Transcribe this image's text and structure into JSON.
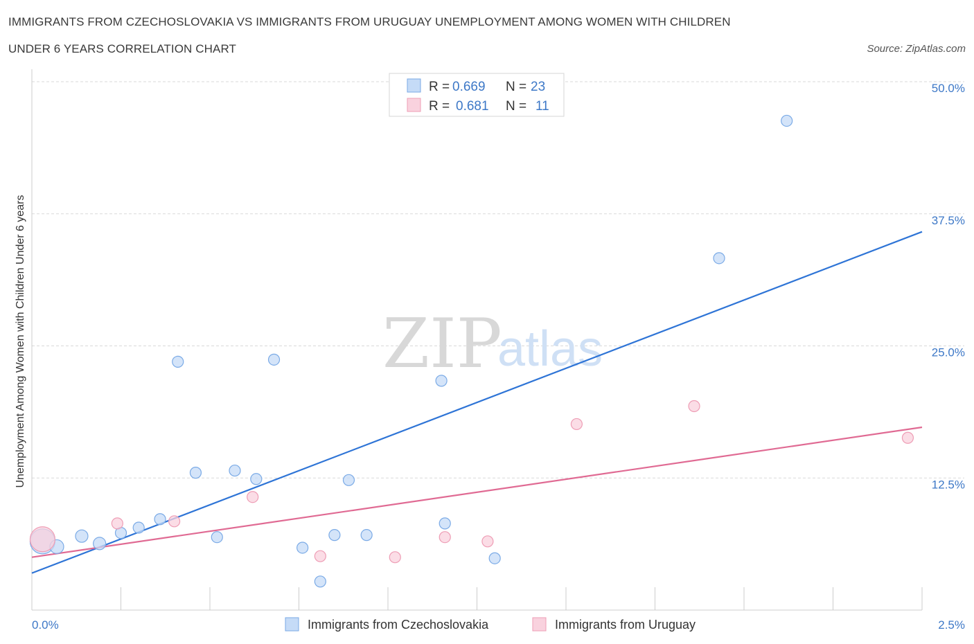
{
  "title_line1": "IMMIGRANTS FROM CZECHOSLOVAKIA VS IMMIGRANTS FROM URUGUAY UNEMPLOYMENT AMONG WOMEN WITH CHILDREN",
  "title_line2": "UNDER 6 YEARS CORRELATION CHART",
  "source": "Source: ZipAtlas.com",
  "watermark": {
    "zip": "ZIP",
    "atlas": "atlas"
  },
  "colors": {
    "blue_fill": "#c5dbf7",
    "blue_stroke": "#7aaae6",
    "blue_line": "#2e74d6",
    "pink_fill": "#f9d2de",
    "pink_stroke": "#ee9db5",
    "pink_line": "#e06a93",
    "grid": "#d9d9d9",
    "axis_text": "#3d78c7"
  },
  "chart_data": {
    "type": "scatter",
    "title": "IMMIGRANTS FROM CZECHOSLOVAKIA VS IMMIGRANTS FROM URUGUAY UNEMPLOYMENT AMONG WOMEN WITH CHILDREN UNDER 6 YEARS CORRELATION CHART",
    "xlabel": "",
    "ylabel": "Unemployment Among Women with Children Under 6 years",
    "xlim": [
      0,
      2.5
    ],
    "ylim": [
      0,
      50
    ],
    "x_tick_labels": [
      "0.0%",
      "2.5%"
    ],
    "y_ticks": [
      12.5,
      25.0,
      37.5,
      50.0
    ],
    "y_tick_labels": [
      "12.5%",
      "25.0%",
      "37.5%",
      "50.0%"
    ],
    "grid": true,
    "legend": [
      {
        "r_label": "R =",
        "r_value": "0.669",
        "n_label": "N =",
        "n_value": "23"
      },
      {
        "r_label": "R =",
        "r_value": "0.681",
        "n_label": "N =",
        "n_value": "11"
      }
    ],
    "series": [
      {
        "name": "Immigrants from Czechoslovakia",
        "color": "blue",
        "points": [
          {
            "x": 0.03,
            "y": 6.5,
            "size": 18
          },
          {
            "x": 0.07,
            "y": 6.0,
            "size": 10
          },
          {
            "x": 0.14,
            "y": 7.0,
            "size": 9
          },
          {
            "x": 0.19,
            "y": 6.3,
            "size": 9
          },
          {
            "x": 0.25,
            "y": 7.3,
            "size": 8
          },
          {
            "x": 0.3,
            "y": 7.8,
            "size": 8
          },
          {
            "x": 0.36,
            "y": 8.6,
            "size": 8
          },
          {
            "x": 0.41,
            "y": 23.5,
            "size": 8
          },
          {
            "x": 0.46,
            "y": 13.0,
            "size": 8
          },
          {
            "x": 0.52,
            "y": 6.9,
            "size": 8
          },
          {
            "x": 0.57,
            "y": 13.2,
            "size": 8
          },
          {
            "x": 0.63,
            "y": 12.4,
            "size": 8
          },
          {
            "x": 0.68,
            "y": 23.7,
            "size": 8
          },
          {
            "x": 0.76,
            "y": 5.9,
            "size": 8
          },
          {
            "x": 0.81,
            "y": 2.7,
            "size": 8
          },
          {
            "x": 0.85,
            "y": 7.1,
            "size": 8
          },
          {
            "x": 0.89,
            "y": 12.3,
            "size": 8
          },
          {
            "x": 0.94,
            "y": 7.1,
            "size": 8
          },
          {
            "x": 1.15,
            "y": 21.7,
            "size": 8
          },
          {
            "x": 1.16,
            "y": 8.2,
            "size": 8
          },
          {
            "x": 1.3,
            "y": 4.9,
            "size": 8
          },
          {
            "x": 1.93,
            "y": 33.3,
            "size": 8
          },
          {
            "x": 2.12,
            "y": 46.3,
            "size": 8
          }
        ],
        "trendline": {
          "x": [
            0,
            2.5
          ],
          "y": [
            3.5,
            35.8
          ]
        }
      },
      {
        "name": "Immigrants from Uruguay",
        "color": "pink",
        "points": [
          {
            "x": 0.03,
            "y": 6.7,
            "size": 18
          },
          {
            "x": 0.24,
            "y": 8.2,
            "size": 8
          },
          {
            "x": 0.4,
            "y": 8.4,
            "size": 8
          },
          {
            "x": 0.62,
            "y": 10.7,
            "size": 8
          },
          {
            "x": 0.81,
            "y": 5.1,
            "size": 8
          },
          {
            "x": 1.02,
            "y": 5.0,
            "size": 8
          },
          {
            "x": 1.16,
            "y": 6.9,
            "size": 8
          },
          {
            "x": 1.28,
            "y": 6.5,
            "size": 8
          },
          {
            "x": 1.53,
            "y": 17.6,
            "size": 8
          },
          {
            "x": 1.86,
            "y": 19.3,
            "size": 8
          },
          {
            "x": 2.46,
            "y": 16.3,
            "size": 8
          }
        ],
        "trendline": {
          "x": [
            0,
            2.5
          ],
          "y": [
            5.0,
            17.3
          ]
        }
      }
    ]
  }
}
